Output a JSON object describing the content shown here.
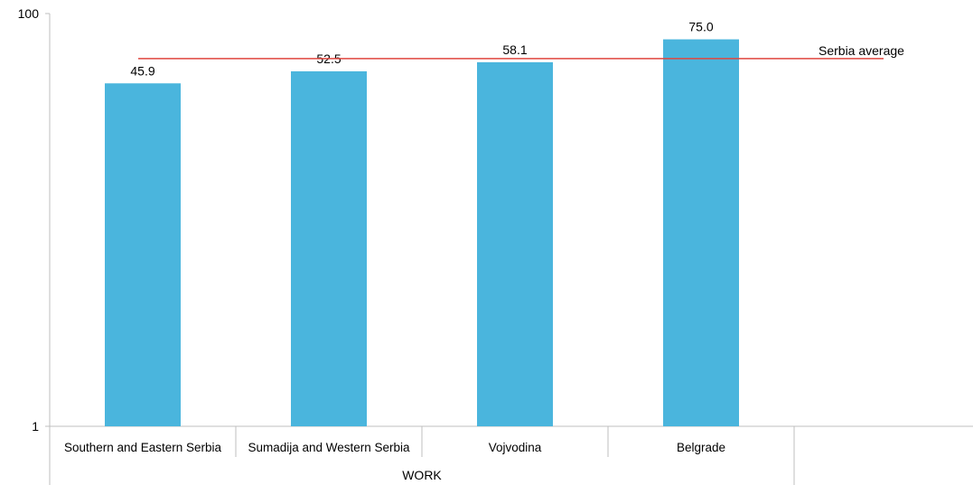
{
  "chart_data": {
    "type": "bar",
    "categories": [
      "Southern and Eastern Serbia",
      "Sumadija and Western Serbia",
      "Vojvodina",
      "Belgrade"
    ],
    "values": [
      45.9,
      52.5,
      58.1,
      75.0
    ],
    "value_labels": [
      "45.9",
      "52.5",
      "58.1",
      "75.0"
    ],
    "group_label": "WORK",
    "y_scale": "log",
    "ylim": [
      1,
      100
    ],
    "y_ticks": [
      1,
      100
    ],
    "reference_line": {
      "label": "Serbia average",
      "value": 60.5,
      "color": "#e0463f"
    },
    "bar_color": "#4ab5dd",
    "grid": false,
    "legend": "none"
  }
}
